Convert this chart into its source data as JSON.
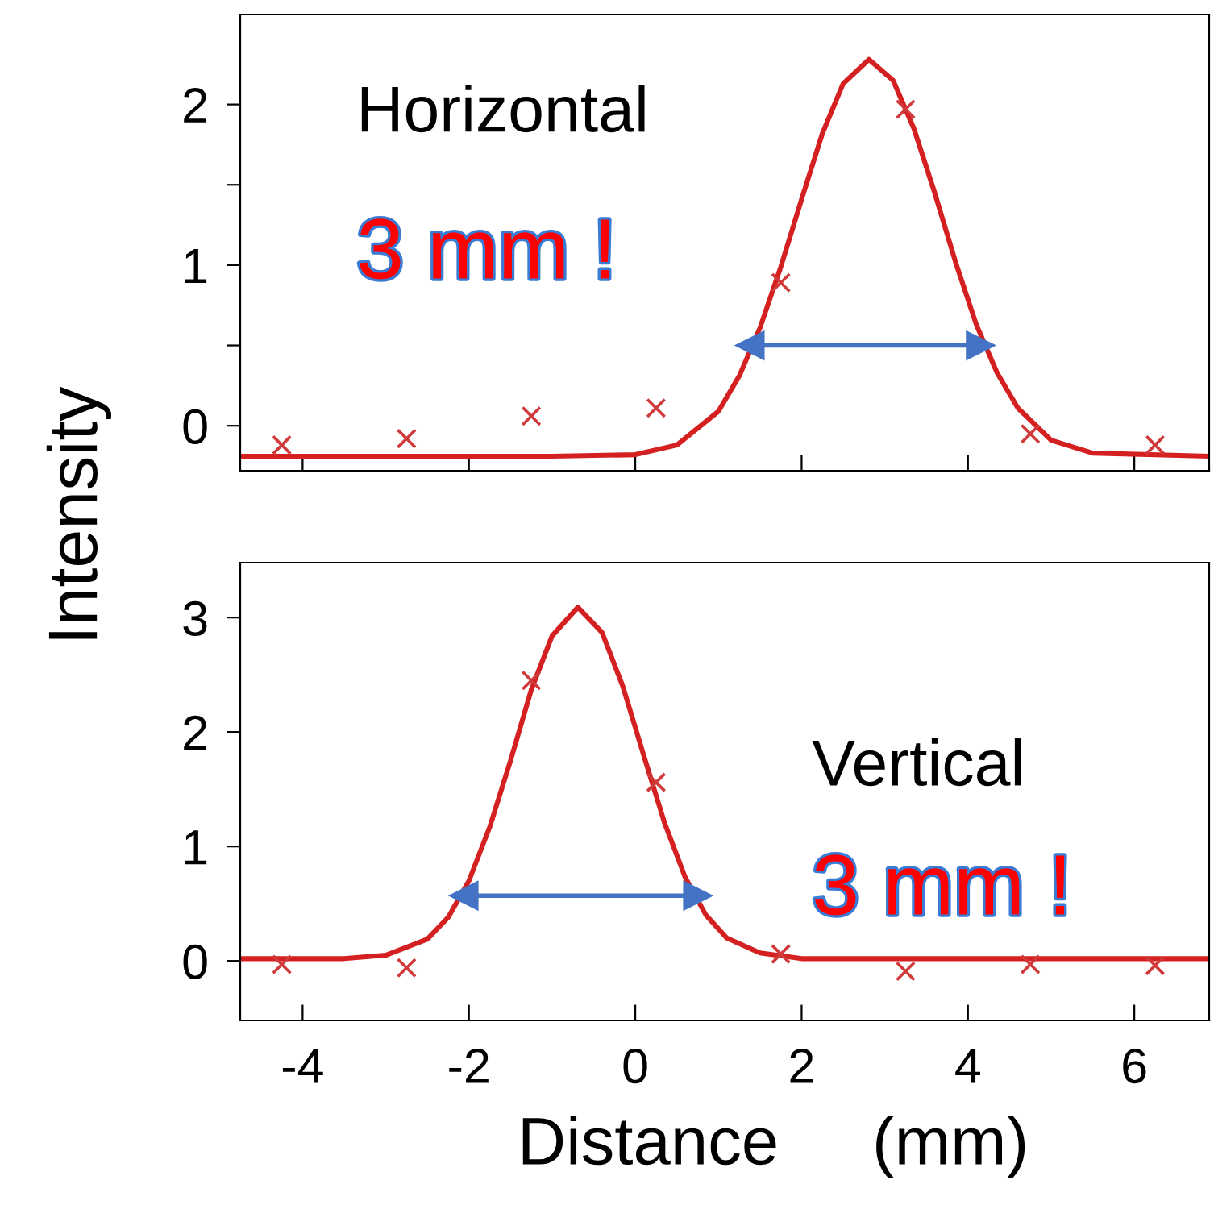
{
  "chart_data": [
    {
      "type": "scatter",
      "ylabel": "Intensity",
      "annotations": [
        "Horizontal",
        "3 mm !"
      ],
      "xlim": [
        -4.75,
        6.9
      ],
      "xticks": [
        {
          "value": -4,
          "label": null
        },
        {
          "value": -2,
          "label": null
        },
        {
          "value": 0,
          "label": null
        },
        {
          "value": 2,
          "label": null
        },
        {
          "value": 4,
          "label": null
        },
        {
          "value": 6,
          "label": null
        }
      ],
      "ylim": [
        -0.28,
        2.56
      ],
      "yticks": [
        0,
        {
          "value": 0.5,
          "label": null
        },
        1,
        {
          "value": 1.5,
          "label": null
        },
        2
      ],
      "tick_labels": "y",
      "grid": false,
      "legend": false,
      "series": [
        {
          "marker": "cross",
          "color": "#d03a3a",
          "x": [
            -4.25,
            -2.75,
            -1.25,
            0.25,
            1.75,
            3.25,
            4.75,
            6.25
          ],
          "values": [
            -0.12,
            -0.08,
            0.06,
            0.11,
            0.89,
            1.97,
            -0.05,
            -0.12
          ]
        },
        {
          "type": "line",
          "marker": "none",
          "color": "#d42020",
          "x": [
            -4.75,
            -1,
            0,
            0.5,
            1,
            1.25,
            1.5,
            1.75,
            2,
            2.25,
            2.5,
            2.81,
            3.1,
            3.35,
            3.6,
            3.85,
            4.1,
            4.35,
            4.6,
            5,
            5.5,
            6.9
          ],
          "values": [
            -0.19,
            -0.19,
            -0.18,
            -0.12,
            0.09,
            0.31,
            0.61,
            0.99,
            1.41,
            1.82,
            2.13,
            2.28,
            2.15,
            1.85,
            1.45,
            1.02,
            0.63,
            0.33,
            0.11,
            -0.09,
            -0.17,
            -0.19
          ]
        },
        {
          "type": "line",
          "marker": "triangle",
          "color": "#4472c4",
          "x": [
            1.38,
            4.15
          ],
          "values": [
            0.5,
            0.5
          ]
        }
      ]
    },
    {
      "type": "scatter",
      "xlabel": "Distance     (mm)",
      "annotations": [
        "Vertical",
        "3 mm !"
      ],
      "xlim": [
        -4.75,
        6.9
      ],
      "xticks": [
        -4,
        -2,
        0,
        2,
        4,
        6
      ],
      "ylim": [
        -0.52,
        3.48
      ],
      "yticks": [
        0,
        1,
        2,
        3
      ],
      "grid": false,
      "legend": false,
      "series": [
        {
          "marker": "cross",
          "color": "#d03a3a",
          "x": [
            -4.25,
            -2.75,
            -1.25,
            0.25,
            1.75,
            3.25,
            4.75,
            6.25
          ],
          "values": [
            -0.03,
            -0.06,
            2.45,
            1.56,
            0.06,
            -0.09,
            -0.03,
            -0.04
          ]
        },
        {
          "type": "line",
          "marker": "none",
          "color": "#d42020",
          "x": [
            -4.75,
            -3.5,
            -3,
            -2.5,
            -2.25,
            -2,
            -1.75,
            -1.5,
            -1.25,
            -1,
            -0.69,
            -0.4,
            -0.15,
            0.1,
            0.35,
            0.6,
            0.85,
            1.1,
            1.5,
            2,
            3,
            6.9
          ],
          "values": [
            0.02,
            0.02,
            0.05,
            0.19,
            0.38,
            0.7,
            1.17,
            1.75,
            2.37,
            2.84,
            3.09,
            2.87,
            2.4,
            1.8,
            1.21,
            0.73,
            0.4,
            0.2,
            0.07,
            0.02,
            0.02,
            0.02
          ]
        },
        {
          "type": "line",
          "marker": "triangle",
          "color": "#4472c4",
          "x": [
            -2.06,
            0.75
          ],
          "values": [
            0.57,
            0.57
          ]
        }
      ]
    }
  ]
}
